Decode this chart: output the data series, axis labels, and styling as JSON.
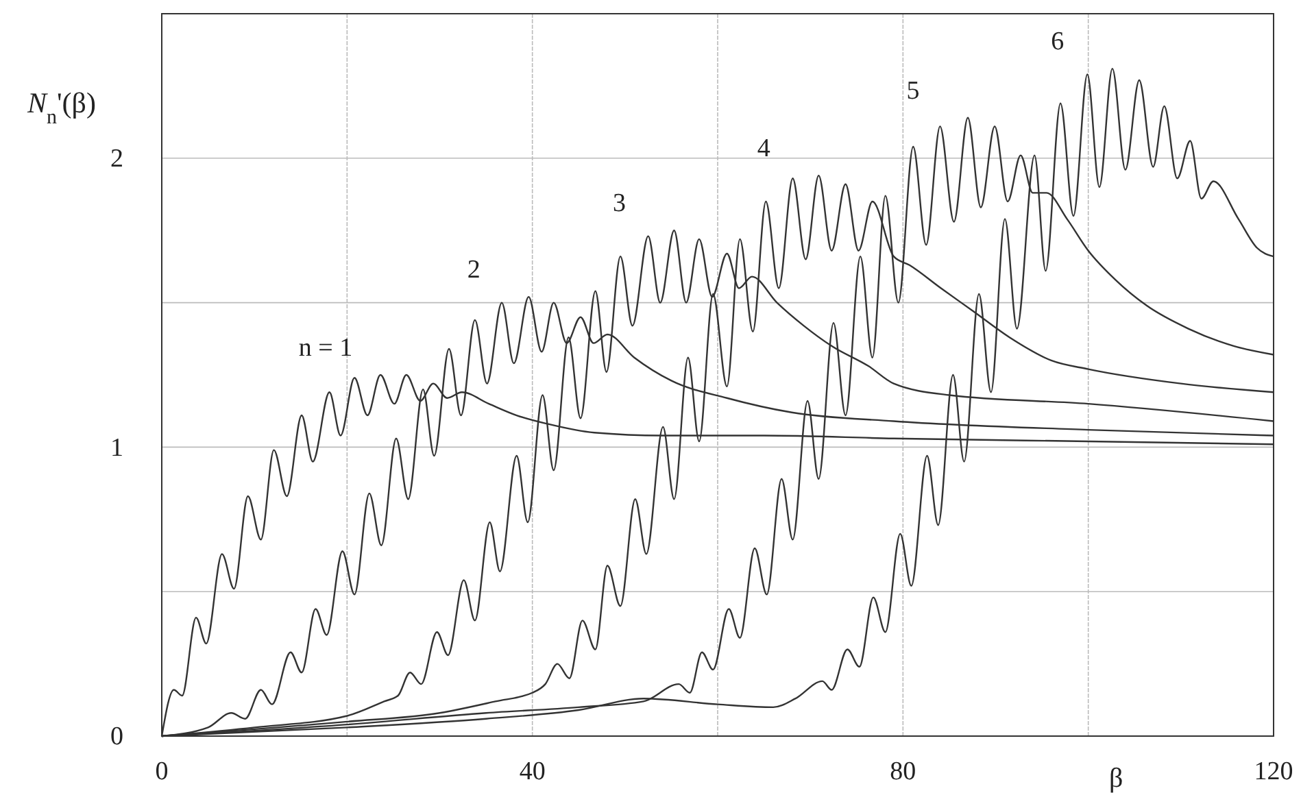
{
  "chart_data": {
    "type": "line",
    "ylabel": "N$_{n}$'(β)",
    "xlabel": "β",
    "xlim": [
      0,
      120
    ],
    "ylim": [
      0,
      2.5
    ],
    "xticks": [
      0,
      {
        "value": 20,
        "label": null
      },
      40,
      {
        "value": 60,
        "label": null
      },
      80,
      {
        "value": 100,
        "label": null
      },
      120
    ],
    "yticks": [
      0,
      {
        "value": 0.5,
        "label": null
      },
      1,
      {
        "value": 1.5,
        "label": null
      },
      2
    ],
    "grid": true,
    "marker": "none",
    "line_style": "solid",
    "series": [
      {
        "name": "n = 1",
        "color": "#333333",
        "x": [
          0,
          1.3,
          2.2,
          3.7,
          4.8,
          6.5,
          7.8,
          9.3,
          10.7,
          12.1,
          13.5,
          15.1,
          16.3,
          18.1,
          19.3,
          20.8,
          22.2,
          23.6,
          25.1,
          26.4,
          27.9,
          29.3,
          30.8,
          32.4,
          35.3,
          38.3,
          41.7,
          46.7,
          54,
          65,
          79,
          100,
          120
        ],
        "values": [
          0,
          0.16,
          0.14,
          0.41,
          0.32,
          0.63,
          0.51,
          0.83,
          0.68,
          0.99,
          0.83,
          1.11,
          0.95,
          1.19,
          1.04,
          1.24,
          1.11,
          1.25,
          1.15,
          1.25,
          1.16,
          1.22,
          1.17,
          1.19,
          1.15,
          1.11,
          1.08,
          1.05,
          1.04,
          1.04,
          1.03,
          1.02,
          1.01
        ]
      },
      {
        "name": "2",
        "color": "#333333",
        "x": [
          0,
          5,
          7.5,
          9,
          10.7,
          11.9,
          13.9,
          15.1,
          16.6,
          17.8,
          19.5,
          20.8,
          22.4,
          23.7,
          25.3,
          26.6,
          28.2,
          29.4,
          31,
          32.3,
          33.8,
          35.1,
          36.7,
          38,
          39.6,
          41,
          42.3,
          43.7,
          45.2,
          46.6,
          48.1,
          51,
          55,
          61,
          68,
          79,
          100,
          120
        ],
        "values": [
          0,
          0.03,
          0.08,
          0.06,
          0.16,
          0.11,
          0.29,
          0.22,
          0.44,
          0.35,
          0.64,
          0.49,
          0.84,
          0.66,
          1.03,
          0.82,
          1.2,
          0.97,
          1.34,
          1.11,
          1.44,
          1.22,
          1.5,
          1.29,
          1.52,
          1.33,
          1.5,
          1.36,
          1.45,
          1.36,
          1.39,
          1.31,
          1.23,
          1.17,
          1.12,
          1.09,
          1.06,
          1.04
        ]
      },
      {
        "name": "3",
        "color": "#333333",
        "x": [
          0,
          10,
          20,
          24,
          25.5,
          26.8,
          28,
          29.7,
          30.9,
          32.6,
          33.8,
          35.4,
          36.5,
          38.3,
          39.5,
          41.1,
          42.3,
          43.9,
          45.2,
          46.8,
          48,
          49.5,
          50.8,
          52.5,
          53.8,
          55.3,
          56.6,
          58,
          59.4,
          61,
          62.3,
          63.7,
          66.4,
          69.3,
          72.3,
          76.3,
          79,
          85,
          100,
          120
        ],
        "values": [
          0,
          0.03,
          0.07,
          0.12,
          0.14,
          0.22,
          0.18,
          0.36,
          0.28,
          0.54,
          0.4,
          0.74,
          0.57,
          0.97,
          0.74,
          1.18,
          0.92,
          1.38,
          1.1,
          1.54,
          1.26,
          1.66,
          1.42,
          1.73,
          1.5,
          1.75,
          1.5,
          1.72,
          1.52,
          1.67,
          1.55,
          1.59,
          1.5,
          1.42,
          1.35,
          1.28,
          1.22,
          1.18,
          1.15,
          1.09
        ]
      },
      {
        "name": "4",
        "color": "#333333",
        "x": [
          0,
          20,
          30,
          36,
          40,
          41.4,
          42.7,
          44,
          45.4,
          46.8,
          48.1,
          49.5,
          51.1,
          52.3,
          54.1,
          55.3,
          56.8,
          58,
          59.5,
          61,
          62.4,
          63.8,
          65.2,
          66.6,
          68.1,
          69.5,
          70.9,
          72.3,
          73.8,
          75.2,
          76.7,
          79,
          80.7,
          84.1,
          87.6,
          91.5,
          96,
          100,
          110,
          120
        ],
        "values": [
          0,
          0.05,
          0.08,
          0.12,
          0.15,
          0.18,
          0.25,
          0.2,
          0.4,
          0.3,
          0.59,
          0.45,
          0.82,
          0.63,
          1.07,
          0.82,
          1.31,
          1.02,
          1.53,
          1.21,
          1.72,
          1.4,
          1.85,
          1.55,
          1.93,
          1.65,
          1.94,
          1.68,
          1.91,
          1.68,
          1.85,
          1.66,
          1.63,
          1.55,
          1.47,
          1.38,
          1.3,
          1.27,
          1.22,
          1.19
        ]
      },
      {
        "name": "5",
        "color": "#333333",
        "x": [
          0,
          20,
          35,
          45,
          52,
          55.8,
          57,
          58.3,
          59.5,
          61.2,
          62.4,
          64,
          65.3,
          66.9,
          68.1,
          69.7,
          70.9,
          72.5,
          73.8,
          75.4,
          76.7,
          78.1,
          79.5,
          81.1,
          82.5,
          84,
          85.5,
          87,
          88.4,
          89.9,
          91.3,
          92.7,
          94,
          95.5,
          97.7,
          100,
          102.9,
          106.3,
          110.8,
          115.7,
          120
        ],
        "values": [
          0,
          0.04,
          0.08,
          0.1,
          0.12,
          0.18,
          0.15,
          0.29,
          0.23,
          0.44,
          0.34,
          0.65,
          0.49,
          0.89,
          0.68,
          1.16,
          0.89,
          1.43,
          1.11,
          1.66,
          1.31,
          1.87,
          1.5,
          2.04,
          1.7,
          2.11,
          1.78,
          2.14,
          1.83,
          2.11,
          1.85,
          2.01,
          1.88,
          1.88,
          1.79,
          1.68,
          1.58,
          1.49,
          1.41,
          1.35,
          1.32
        ]
      },
      {
        "name": "6",
        "color": "#333333",
        "x": [
          0,
          20,
          35,
          45,
          52,
          60,
          66,
          68.4,
          71.3,
          72.3,
          74,
          75.3,
          76.8,
          78.1,
          79.7,
          80.9,
          82.6,
          83.8,
          85.4,
          86.6,
          88.2,
          89.5,
          91,
          92.3,
          94.2,
          95.4,
          97,
          98.4,
          99.9,
          101.2,
          102.6,
          104,
          105.5,
          107,
          108.2,
          109.6,
          111,
          112.2,
          113.5,
          116.2,
          118.2,
          120
        ],
        "values": [
          0,
          0.03,
          0.06,
          0.09,
          0.13,
          0.11,
          0.1,
          0.13,
          0.19,
          0.16,
          0.3,
          0.24,
          0.48,
          0.36,
          0.7,
          0.52,
          0.97,
          0.73,
          1.25,
          0.95,
          1.53,
          1.19,
          1.79,
          1.41,
          2.01,
          1.61,
          2.19,
          1.8,
          2.29,
          1.9,
          2.31,
          1.96,
          2.27,
          1.97,
          2.18,
          1.93,
          2.06,
          1.86,
          1.92,
          1.79,
          1.69,
          1.66
        ]
      }
    ]
  }
}
